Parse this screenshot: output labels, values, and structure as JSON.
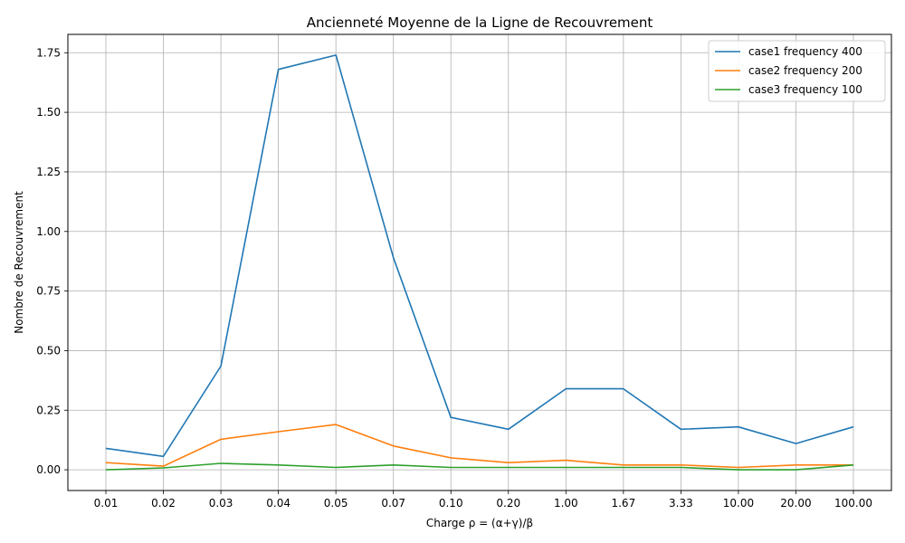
{
  "chart_data": {
    "type": "line",
    "title": "Ancienneté Moyenne de la Ligne de Recouvrement",
    "xlabel": "Charge ρ = (α+γ)/β",
    "ylabel": "Nombre de Recouvrement",
    "categories": [
      "0.01",
      "0.02",
      "0.03",
      "0.04",
      "0.05",
      "0.07",
      "0.10",
      "0.20",
      "1.00",
      "1.67",
      "3.33",
      "10.00",
      "20.00",
      "100.00"
    ],
    "ylim": [
      -0.087,
      1.827
    ],
    "yticks": [
      "0.00",
      "0.25",
      "0.50",
      "0.75",
      "1.00",
      "1.25",
      "1.50",
      "1.75"
    ],
    "grid": true,
    "legend_position": "top-right",
    "series": [
      {
        "name": "case1 frequency 400",
        "color": "#1f77b4",
        "values": [
          0.09,
          0.056,
          0.435,
          1.68,
          1.74,
          0.89,
          0.22,
          0.17,
          0.34,
          0.34,
          0.17,
          0.18,
          0.11,
          0.18
        ]
      },
      {
        "name": "case2 frequency 200",
        "color": "#ff7f0e",
        "values": [
          0.03,
          0.015,
          0.128,
          0.16,
          0.19,
          0.1,
          0.05,
          0.03,
          0.04,
          0.02,
          0.02,
          0.01,
          0.02,
          0.02
        ]
      },
      {
        "name": "case3 frequency 100",
        "color": "#2ca02c",
        "values": [
          0.0,
          0.008,
          0.027,
          0.02,
          0.01,
          0.02,
          0.01,
          0.01,
          0.01,
          0.01,
          0.01,
          0.0,
          0.0,
          0.02
        ]
      }
    ]
  }
}
